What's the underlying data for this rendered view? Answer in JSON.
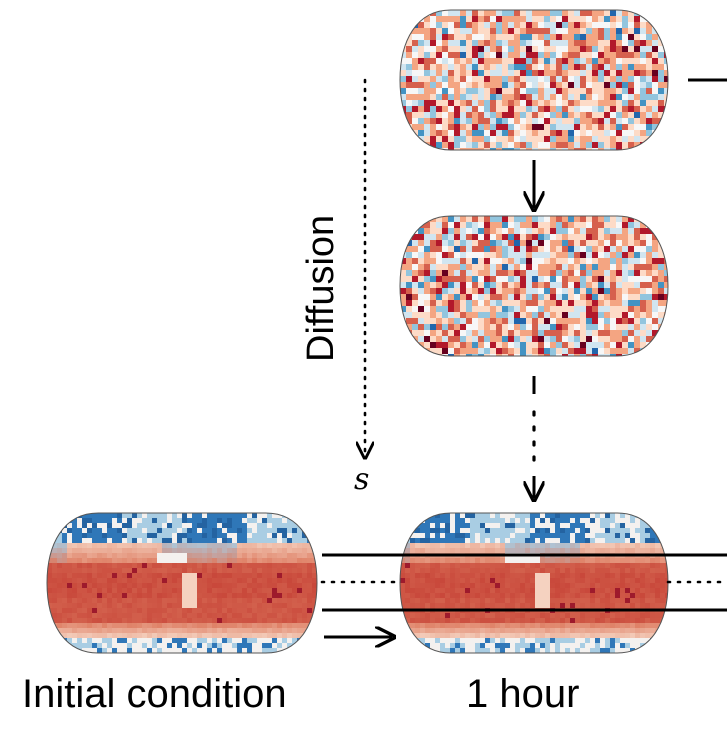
{
  "labels": {
    "initial_condition": "Initial condition",
    "one_hour": "1 hour",
    "diffusion": "Diffusion",
    "s": "s"
  },
  "colors": {
    "noise_palette": [
      "#67001f",
      "#b2182b",
      "#d6604d",
      "#f4a582",
      "#fddbc7",
      "#f7f7f7",
      "#d1e5f0",
      "#92c5de",
      "#4393c3",
      "#2166ac"
    ],
    "field_warm": "#c84a3c",
    "field_cool": "#2e75b6",
    "line": "#000000"
  },
  "icons": [
    "arrow-down-icon",
    "arrow-right-icon"
  ]
}
